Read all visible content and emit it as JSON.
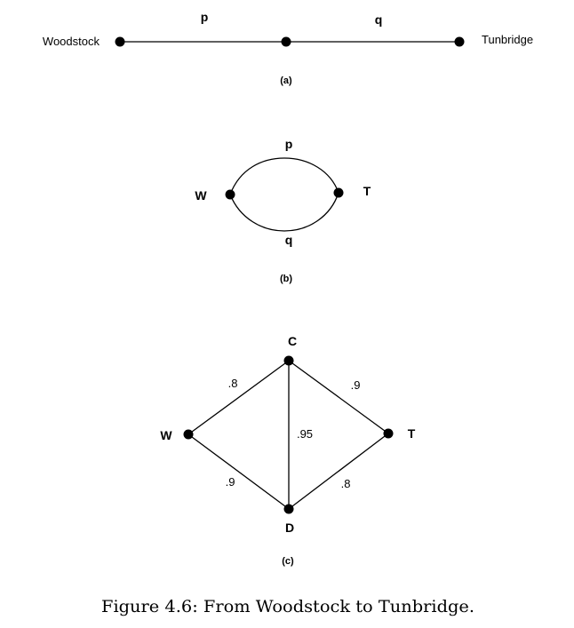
{
  "panel_a": {
    "nodes": {
      "left": "Woodstock",
      "right": "Tunbridge"
    },
    "edges": {
      "left": "p",
      "right": "q"
    },
    "label": "(a)"
  },
  "panel_b": {
    "nodes": {
      "left": "W",
      "right": "T"
    },
    "edges": {
      "top": "p",
      "bottom": "q"
    },
    "label": "(b)"
  },
  "panel_c": {
    "nodes": {
      "w": "W",
      "c": "C",
      "d": "D",
      "t": "T"
    },
    "edges": {
      "wc": ".8",
      "wd": ".9",
      "cd": ".95",
      "ct": ".9",
      "dt": ".8"
    },
    "label": "(c)"
  },
  "caption": "Figure 4.6: From Woodstock to Tunbridge."
}
